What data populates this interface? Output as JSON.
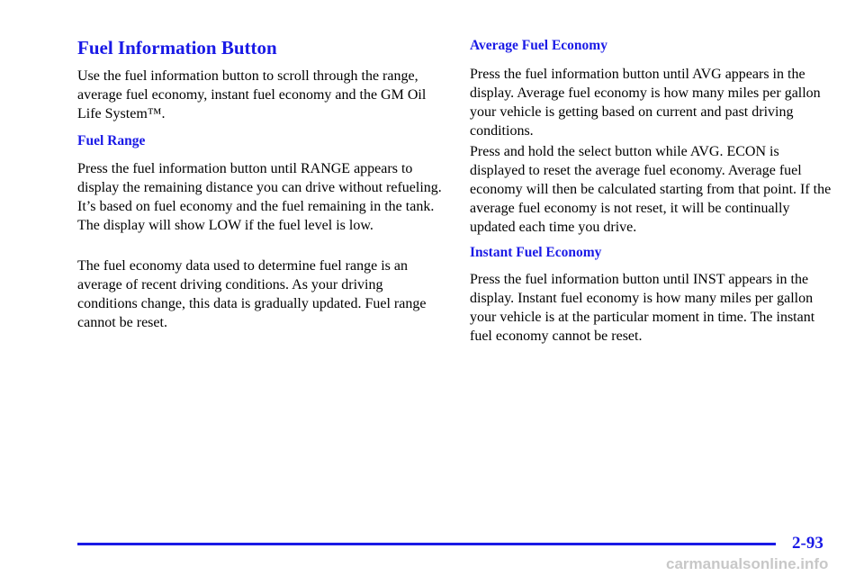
{
  "title": "Fuel Information Button",
  "left": {
    "intro": "Use the fuel information button to scroll through the range, average fuel economy, instant fuel economy and the GM Oil Life System™.",
    "fuel_range": {
      "heading": "Fuel Range",
      "paragraphs": [
        "Press the fuel information button until RANGE appears to display the remaining distance you can drive without refueling. It’s based on fuel economy and the fuel remaining in the tank. The display will show LOW if the fuel level is low.",
        "The fuel economy data used to determine fuel range is an average of recent driving conditions. As your driving conditions change, this data is gradually updated. Fuel range cannot be reset."
      ]
    }
  },
  "right": {
    "average": {
      "heading": "Average Fuel Economy",
      "paragraphs": [
        "Press the fuel information button until AVG appears in the display. Average fuel economy is how many miles per gallon your vehicle is getting based on current and past driving conditions.",
        "Press and hold the select button while AVG. ECON is displayed to reset the average fuel economy. Average fuel economy will then be calculated starting from that point. If the average fuel economy is not reset, it will be continually updated each time you drive."
      ]
    },
    "instant": {
      "heading": "Instant Fuel Economy",
      "paragraphs": [
        "Press the fuel information button until INST appears in the display. Instant fuel economy is how many miles per gallon your vehicle is at the particular moment in time. The instant fuel economy cannot be reset."
      ]
    }
  },
  "page_number": "2-93",
  "watermark": "carmanualsonline.info"
}
